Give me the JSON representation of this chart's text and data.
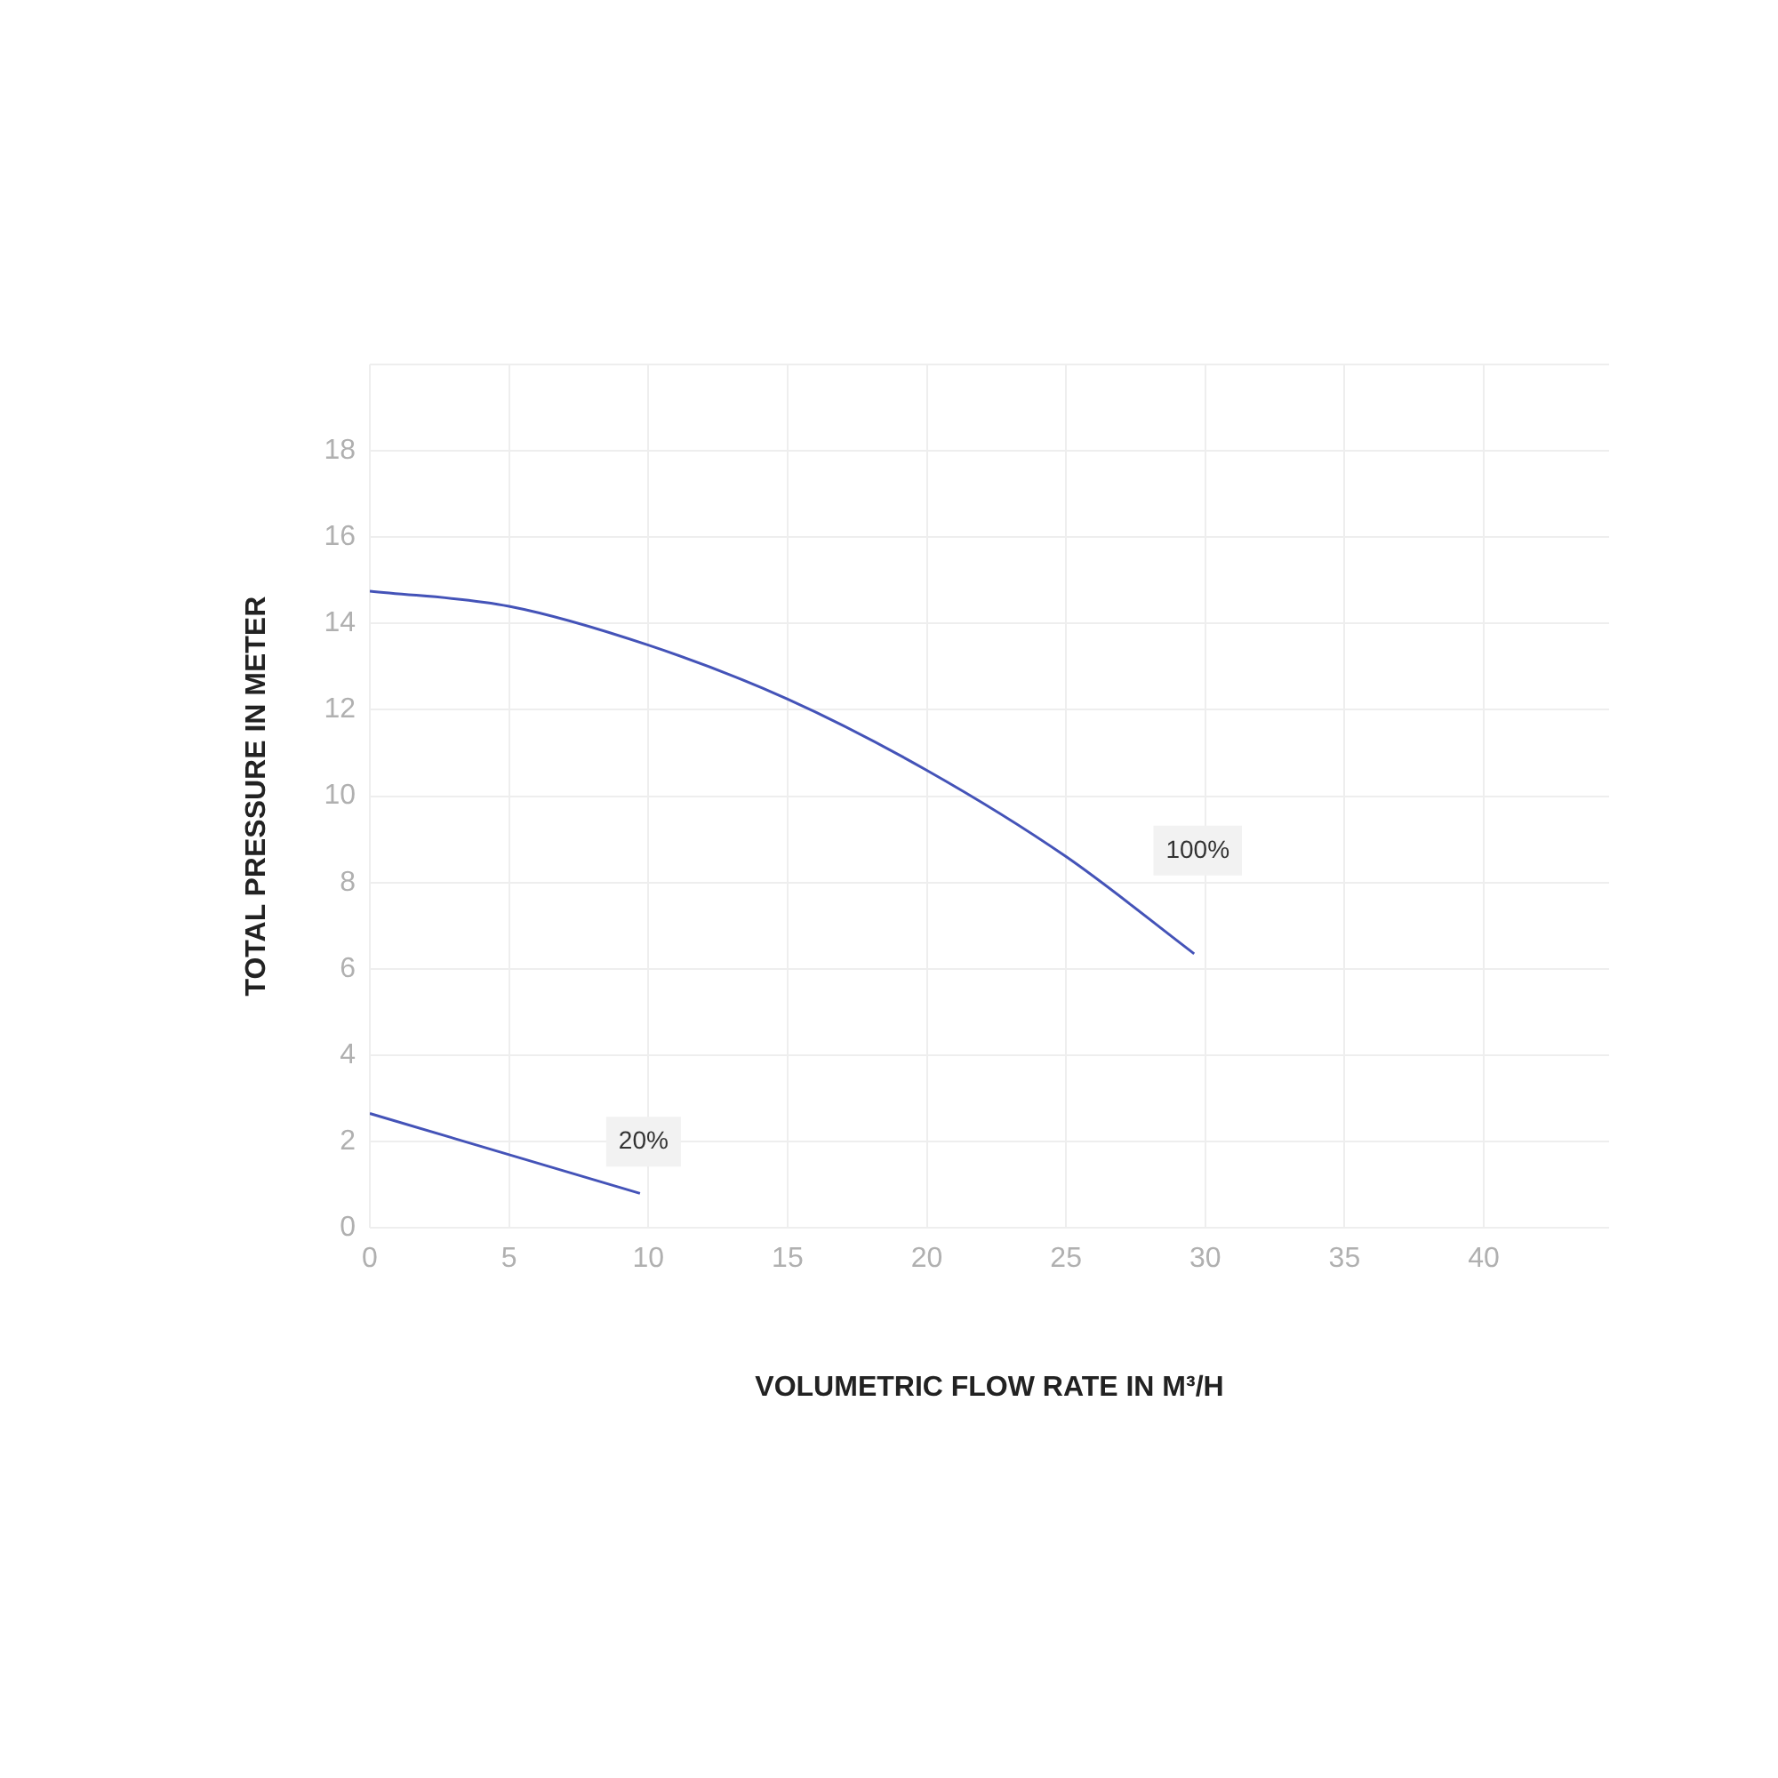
{
  "chart_data": {
    "type": "line",
    "xlabel": "VOLUMETRIC FLOW RATE IN M³/H",
    "ylabel": "TOTAL PRESSURE IN METER",
    "xlim": [
      0,
      44.5
    ],
    "xticks": [
      0,
      5,
      10,
      15,
      20,
      25,
      30,
      35,
      40
    ],
    "ylim": [
      0,
      20
    ],
    "yticks": [
      0,
      2,
      4,
      6,
      8,
      10,
      12,
      14,
      16,
      18,
      {
        "value": 20,
        "label": null
      }
    ],
    "grid": true,
    "legend": false,
    "marker": "none",
    "line_style": "solid",
    "series": [
      {
        "name": "100%",
        "color": "#4453b8",
        "x": [
          0,
          5,
          10,
          15,
          20,
          25,
          29.6
        ],
        "values": [
          14.75,
          14.4,
          13.5,
          12.25,
          10.6,
          8.6,
          6.35
        ]
      },
      {
        "name": "20%",
        "color": "#4453b8",
        "x": [
          0,
          9.7
        ],
        "values": [
          2.65,
          0.8
        ]
      }
    ]
  }
}
